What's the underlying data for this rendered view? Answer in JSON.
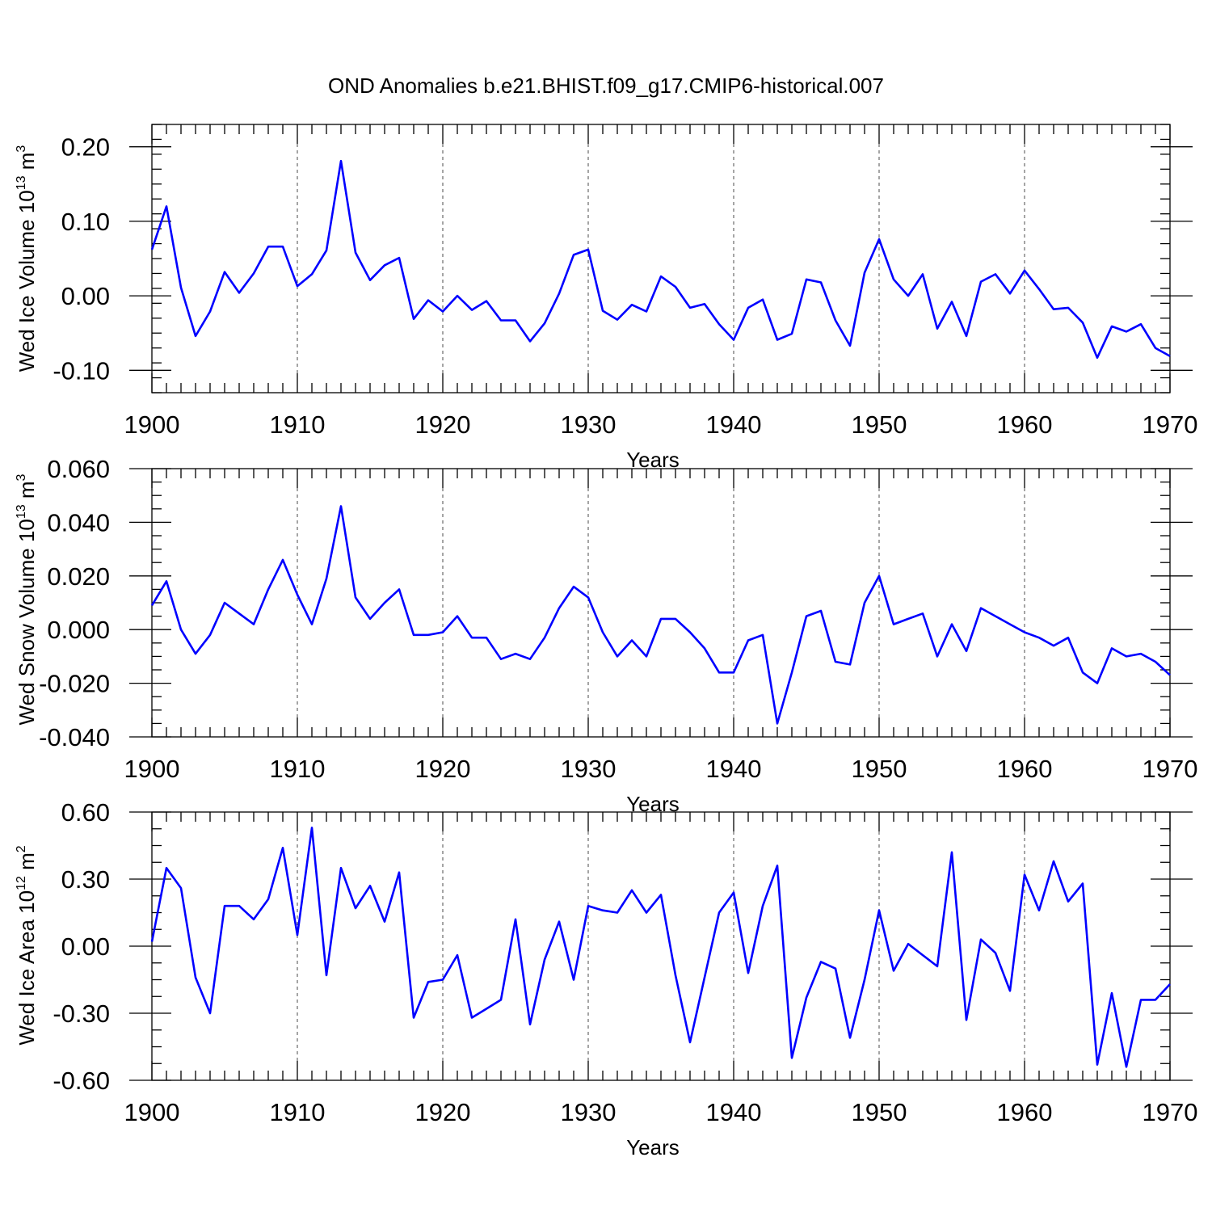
{
  "chart_data": {
    "type": "line",
    "title": "OND Anomalies b.e21.BHIST.f09_g17.CMIP6-historical.007",
    "x": [
      1900,
      1901,
      1902,
      1903,
      1904,
      1905,
      1906,
      1907,
      1908,
      1909,
      1910,
      1911,
      1912,
      1913,
      1914,
      1915,
      1916,
      1917,
      1918,
      1919,
      1920,
      1921,
      1922,
      1923,
      1924,
      1925,
      1926,
      1927,
      1928,
      1929,
      1930,
      1931,
      1932,
      1933,
      1934,
      1935,
      1936,
      1937,
      1938,
      1939,
      1940,
      1941,
      1942,
      1943,
      1944,
      1945,
      1946,
      1947,
      1948,
      1949,
      1950,
      1951,
      1952,
      1953,
      1954,
      1955,
      1956,
      1957,
      1958,
      1959,
      1960,
      1961,
      1962,
      1963,
      1964,
      1965,
      1966,
      1967,
      1968,
      1969,
      1970
    ],
    "panels": [
      {
        "ylabel_main": "Wed Ice Volume 10",
        "ylabel_sup": "13",
        "ylabel_unit": " m",
        "ylabel_unit_sup": "3",
        "xlabel": "Years",
        "xlim": [
          1900,
          1970
        ],
        "ylim": [
          -0.13,
          0.23
        ],
        "xticks": [
          "1900",
          "1910",
          "1920",
          "1930",
          "1940",
          "1950",
          "1960",
          "1970"
        ],
        "xtick_values": [
          1900,
          1910,
          1920,
          1930,
          1940,
          1950,
          1960,
          1970
        ],
        "yticks": [
          "-0.10",
          "0.00",
          "0.10",
          "0.20"
        ],
        "ytick_values": [
          -0.1,
          0.0,
          0.1,
          0.2
        ],
        "yminor_step": 0.02,
        "series": [
          {
            "name": "Wed Ice Volume",
            "color": "#0000ff",
            "values": [
              0.062,
              0.12,
              0.011,
              -0.054,
              -0.021,
              0.032,
              0.004,
              0.03,
              0.066,
              0.066,
              0.013,
              0.029,
              0.061,
              0.181,
              0.058,
              0.021,
              0.041,
              0.051,
              -0.031,
              -0.006,
              -0.021,
              0.0,
              -0.019,
              -0.007,
              -0.033,
              -0.033,
              -0.061,
              -0.037,
              0.003,
              0.055,
              0.062,
              -0.02,
              -0.032,
              -0.012,
              -0.021,
              0.026,
              0.012,
              -0.016,
              -0.011,
              -0.038,
              -0.059,
              -0.016,
              -0.005,
              -0.059,
              -0.051,
              0.022,
              0.018,
              -0.033,
              -0.067,
              0.031,
              0.076,
              0.022,
              0.0,
              0.029,
              -0.044,
              -0.008,
              -0.054,
              0.019,
              0.029,
              0.003,
              0.034,
              0.009,
              -0.018,
              -0.016,
              -0.036,
              -0.083,
              -0.041,
              -0.048,
              -0.038,
              -0.07,
              -0.081
            ]
          }
        ]
      },
      {
        "ylabel_main": "Wed Snow Volume 10",
        "ylabel_sup": "13",
        "ylabel_unit": " m",
        "ylabel_unit_sup": "3",
        "xlabel": "Years",
        "xlim": [
          1900,
          1970
        ],
        "ylim": [
          -0.04,
          0.06
        ],
        "xticks": [
          "1900",
          "1910",
          "1920",
          "1930",
          "1940",
          "1950",
          "1960",
          "1970"
        ],
        "xtick_values": [
          1900,
          1910,
          1920,
          1930,
          1940,
          1950,
          1960,
          1970
        ],
        "yticks": [
          "-0.040",
          "-0.020",
          "0.000",
          "0.020",
          "0.040",
          "0.060"
        ],
        "ytick_values": [
          -0.04,
          -0.02,
          0.0,
          0.02,
          0.04,
          0.06
        ],
        "yminor_step": 0.005,
        "series": [
          {
            "name": "Wed Snow Volume",
            "color": "#0000ff",
            "values": [
              0.009,
              0.018,
              0.0,
              -0.009,
              -0.002,
              0.01,
              0.006,
              0.002,
              0.015,
              0.026,
              0.013,
              0.002,
              0.019,
              0.046,
              0.012,
              0.004,
              0.01,
              0.015,
              -0.002,
              -0.002,
              -0.001,
              0.005,
              -0.003,
              -0.003,
              -0.011,
              -0.009,
              -0.011,
              -0.003,
              0.008,
              0.016,
              0.012,
              -0.001,
              -0.01,
              -0.004,
              -0.01,
              0.004,
              0.004,
              -0.001,
              -0.007,
              -0.016,
              -0.016,
              -0.004,
              -0.002,
              -0.035,
              -0.016,
              0.005,
              0.007,
              -0.012,
              -0.013,
              0.01,
              0.02,
              0.002,
              0.004,
              0.006,
              -0.01,
              0.002,
              -0.008,
              0.008,
              0.005,
              0.002,
              -0.001,
              -0.003,
              -0.006,
              -0.003,
              -0.016,
              -0.02,
              -0.007,
              -0.01,
              -0.009,
              -0.012,
              -0.017
            ]
          }
        ]
      },
      {
        "ylabel_main": "Wed Ice Area 10",
        "ylabel_sup": "12",
        "ylabel_unit": " m",
        "ylabel_unit_sup": "2",
        "xlabel": "Years",
        "xlim": [
          1900,
          1970
        ],
        "ylim": [
          -0.6,
          0.6
        ],
        "xticks": [
          "1900",
          "1910",
          "1920",
          "1930",
          "1940",
          "1950",
          "1960",
          "1970"
        ],
        "xtick_values": [
          1900,
          1910,
          1920,
          1930,
          1940,
          1950,
          1960,
          1970
        ],
        "yticks": [
          "-0.60",
          "-0.30",
          "0.00",
          "0.30",
          "0.60"
        ],
        "ytick_values": [
          -0.6,
          -0.3,
          0.0,
          0.3,
          0.6
        ],
        "yminor_step": 0.075,
        "series": [
          {
            "name": "Wed Ice Area",
            "color": "#0000ff",
            "values": [
              0.02,
              0.35,
              0.26,
              -0.14,
              -0.3,
              0.18,
              0.18,
              0.12,
              0.21,
              0.44,
              0.05,
              0.53,
              -0.13,
              0.35,
              0.17,
              0.27,
              0.11,
              0.33,
              -0.32,
              -0.16,
              -0.15,
              -0.04,
              -0.32,
              -0.28,
              -0.24,
              0.12,
              -0.35,
              -0.06,
              0.11,
              -0.15,
              0.18,
              0.16,
              0.15,
              0.25,
              0.15,
              0.23,
              -0.13,
              -0.43,
              -0.14,
              0.15,
              0.24,
              -0.12,
              0.18,
              0.36,
              -0.5,
              -0.23,
              -0.07,
              -0.1,
              -0.41,
              -0.15,
              0.16,
              -0.11,
              0.01,
              -0.04,
              -0.09,
              0.42,
              -0.33,
              0.03,
              -0.03,
              -0.2,
              0.32,
              0.16,
              0.38,
              0.2,
              0.28,
              -0.53,
              -0.21,
              -0.54,
              -0.24,
              -0.24,
              -0.17
            ]
          }
        ]
      }
    ]
  }
}
